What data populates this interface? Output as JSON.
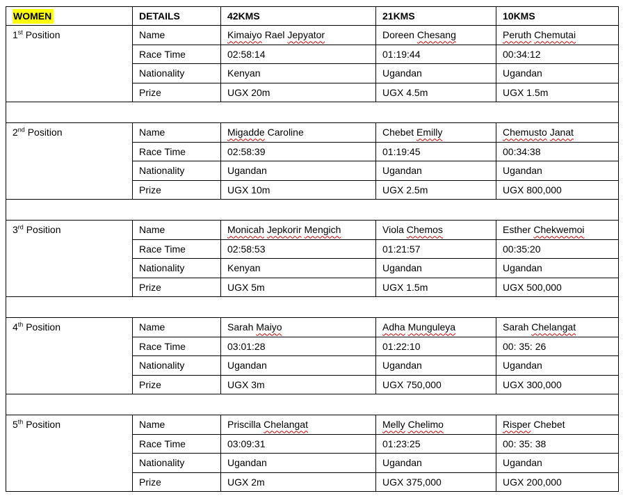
{
  "document": {
    "colors": {
      "highlight": "#ffff00",
      "spellcheck_underline": "#d40000",
      "border": "#000000",
      "text": "#000000"
    },
    "header": {
      "women_label": "WOMEN",
      "details_label": "DETAILS",
      "distances": [
        "42KMS",
        "21KMS",
        "10KMS"
      ]
    },
    "row_labels": [
      "Name",
      "Race Time",
      "Nationality",
      "Prize"
    ],
    "positions": [
      {
        "ordinal": "1",
        "suffix": "st",
        "label_word": "Position",
        "results": [
          {
            "name": "Kimaiyo Rael Jepyator",
            "misspelled_words": [
              "Kimaiyo",
              "Jepyator"
            ],
            "race_time": "02:58:14",
            "nationality": "Kenyan",
            "prize": "UGX 20m"
          },
          {
            "name": "Doreen Chesang",
            "misspelled_words": [
              "Chesang"
            ],
            "race_time": "01:19:44",
            "nationality": "Ugandan",
            "prize": "UGX 4.5m"
          },
          {
            "name": "Peruth Chemutai",
            "misspelled_words": [
              "Peruth",
              "Chemutai"
            ],
            "race_time": "00:34:12",
            "nationality": "Ugandan",
            "prize": "UGX 1.5m"
          }
        ]
      },
      {
        "ordinal": "2",
        "suffix": "nd",
        "label_word": "Position",
        "results": [
          {
            "name": "Migadde Caroline",
            "misspelled_words": [
              "Migadde"
            ],
            "race_time": "02:58:39",
            "nationality": "Ugandan",
            "prize": "UGX 10m"
          },
          {
            "name": "Chebet Emilly",
            "misspelled_words": [
              "Emilly"
            ],
            "race_time": "01:19:45",
            "nationality": "Ugandan",
            "prize": "UGX 2.5m"
          },
          {
            "name": "Chemusto Janat",
            "misspelled_words": [
              "Chemusto",
              "Janat"
            ],
            "race_time": "00:34:38",
            "nationality": "Ugandan",
            "prize": "UGX 800,000"
          }
        ]
      },
      {
        "ordinal": "3",
        "suffix": "rd",
        "label_word": "Position",
        "results": [
          {
            "name": "Monicah Jepkorir Mengich",
            "misspelled_words": [
              "Monicah",
              "Jepkorir",
              "Mengich"
            ],
            "race_time": "02:58:53",
            "nationality": "Kenyan",
            "prize": "UGX 5m"
          },
          {
            "name": "Viola Chemos",
            "misspelled_words": [
              "Chemos"
            ],
            "race_time": "01:21:57",
            "nationality": "Ugandan",
            "prize": "UGX 1.5m"
          },
          {
            "name": "Esther Chekwemoi",
            "misspelled_words": [
              "Chekwemoi"
            ],
            "race_time": "00:35:20",
            "nationality": "Ugandan",
            "prize": "UGX 500,000"
          }
        ]
      },
      {
        "ordinal": "4",
        "suffix": "th",
        "label_word": "Position",
        "results": [
          {
            "name": "Sarah Maiyo",
            "misspelled_words": [
              "Maiyo"
            ],
            "race_time": "03:01:28",
            "nationality": "Ugandan",
            "prize": "UGX 3m"
          },
          {
            "name": "Adha Munguleya",
            "misspelled_words": [
              "Adha",
              "Munguleya"
            ],
            "race_time": "01:22:10",
            "nationality": "Ugandan",
            "prize": "UGX 750,000"
          },
          {
            "name": "Sarah Chelangat",
            "misspelled_words": [
              "Chelangat"
            ],
            "race_time": "00: 35: 26",
            "nationality": "Ugandan",
            "prize": "UGX 300,000"
          }
        ]
      },
      {
        "ordinal": "5",
        "suffix": "th",
        "label_word": "Position",
        "results": [
          {
            "name": "Priscilla Chelangat",
            "misspelled_words": [
              "Chelangat"
            ],
            "race_time": "03:09:31",
            "nationality": "Ugandan",
            "prize": "UGX 2m"
          },
          {
            "name": "Melly Chelimo",
            "misspelled_words": [
              "Melly",
              "Chelimo"
            ],
            "race_time": "01:23:25",
            "nationality": "Ugandan",
            "prize": "UGX 375,000"
          },
          {
            "name": "Risper Chebet",
            "misspelled_words": [
              "Risper"
            ],
            "race_time": "00: 35: 38",
            "nationality": "Ugandan",
            "prize": "UGX 200,000"
          }
        ]
      }
    ]
  }
}
